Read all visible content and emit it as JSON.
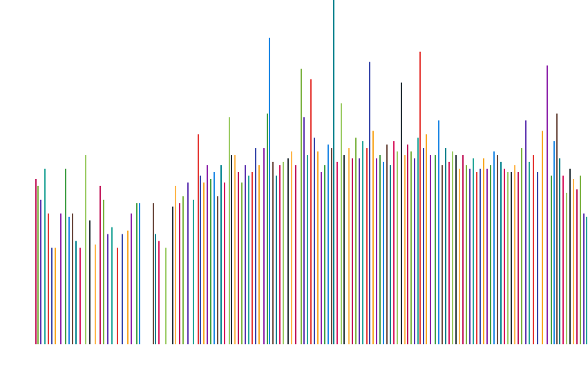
{
  "chart_data": {
    "type": "spike",
    "xlim": [
      0,
      800
    ],
    "ylim": [
      0,
      100
    ],
    "palette": [
      "#c2185b",
      "#7cb342",
      "#5e35b1",
      "#26a69a",
      "#e53935",
      "#3949ab",
      "#f9a825",
      "#8e24aa",
      "#43a047",
      "#1e88e5",
      "#6d4c41",
      "#00838f",
      "#d81b60",
      "#9ccc65",
      "#263238",
      "#ffb74d"
    ],
    "x": [
      2,
      5,
      9,
      15,
      20,
      25,
      30,
      38,
      45,
      50,
      55,
      60,
      66,
      74,
      80,
      88,
      95,
      100,
      106,
      112,
      120,
      127,
      135,
      140,
      148,
      152,
      172,
      175,
      180,
      190,
      200,
      204,
      210,
      215,
      222,
      230,
      237,
      240,
      245,
      250,
      255,
      260,
      265,
      270,
      275,
      282,
      285,
      290,
      295,
      300,
      305,
      310,
      315,
      320,
      325,
      332,
      337,
      340,
      345,
      350,
      355,
      360,
      367,
      372,
      378,
      386,
      390,
      395,
      400,
      405,
      410,
      415,
      420,
      425,
      430,
      433,
      438,
      444,
      448,
      455,
      460,
      465,
      470,
      475,
      481,
      485,
      490,
      495,
      500,
      505,
      510,
      515,
      520,
      525,
      531,
      536,
      540,
      545,
      550,
      555,
      558,
      563,
      567,
      573,
      580,
      585,
      590,
      595,
      600,
      605,
      610,
      615,
      620,
      625,
      630,
      635,
      640,
      645,
      650,
      655,
      660,
      665,
      670,
      675,
      680,
      685,
      690,
      695,
      700,
      705,
      711,
      716,
      722,
      728,
      735,
      742,
      748,
      752,
      756,
      760,
      765,
      770,
      775,
      780,
      785,
      790,
      795,
      799
    ],
    "values": [
      48,
      46,
      42,
      51,
      38,
      28,
      28,
      38,
      51,
      37,
      38,
      30,
      28,
      55,
      36,
      29,
      46,
      42,
      32,
      34,
      28,
      32,
      33,
      38,
      41,
      41,
      41,
      32,
      30,
      28,
      40,
      46,
      41,
      43,
      47,
      42,
      61,
      49,
      47,
      52,
      48,
      50,
      43,
      52,
      47,
      66,
      55,
      55,
      50,
      47,
      52,
      49,
      50,
      57,
      52,
      57,
      67,
      89,
      53,
      49,
      52,
      53,
      54,
      56,
      52,
      80,
      66,
      55,
      77,
      60,
      56,
      50,
      52,
      58,
      57,
      100,
      53,
      70,
      55,
      57,
      54,
      60,
      54,
      59,
      57,
      82,
      62,
      54,
      55,
      53,
      58,
      52,
      59,
      56,
      76,
      55,
      58,
      56,
      54,
      60,
      85,
      57,
      61,
      55,
      55,
      65,
      52,
      57,
      53,
      56,
      55,
      51,
      55,
      52,
      51,
      54,
      50,
      51,
      54,
      51,
      52,
      56,
      55,
      53,
      51,
      50,
      50,
      52,
      50,
      57,
      65,
      53,
      55,
      50,
      62,
      81,
      49,
      59,
      67,
      54,
      49,
      44,
      51,
      48,
      45,
      49,
      38,
      37
    ]
  }
}
